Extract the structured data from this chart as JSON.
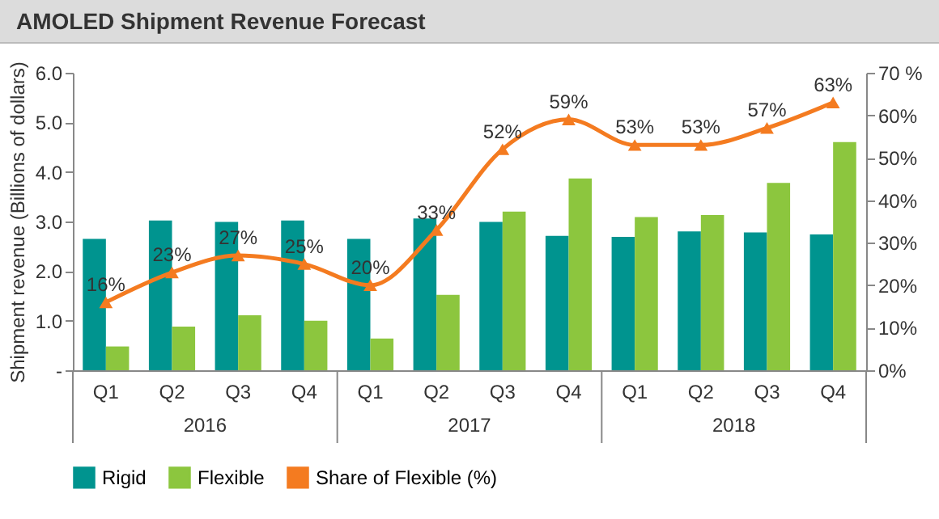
{
  "chart_data": {
    "type": "bar",
    "title": "AMOLED Shipment Revenue Forecast",
    "ylabel": "Shipment revenue (Billions of dollars)",
    "categories": [
      "Q1",
      "Q2",
      "Q3",
      "Q4",
      "Q1",
      "Q2",
      "Q3",
      "Q4",
      "Q1",
      "Q2",
      "Q3",
      "Q4"
    ],
    "annotations": [
      "2016",
      "2017",
      "2018"
    ],
    "series": [
      {
        "name": "Rigid",
        "color": "#00948f",
        "values": [
          2.65,
          3.02,
          2.99,
          3.02,
          2.65,
          3.06,
          2.99,
          2.71,
          2.69,
          2.8,
          2.78,
          2.74
        ]
      },
      {
        "name": "Flexible",
        "color": "#8cc63e",
        "values": [
          0.48,
          0.88,
          1.11,
          1.0,
          0.64,
          1.52,
          3.2,
          3.87,
          3.09,
          3.13,
          3.78,
          4.6
        ]
      },
      {
        "name": "Share of Flexible (%)",
        "type": "line",
        "axis": "y2",
        "color": "#f47b20",
        "values": [
          16,
          23,
          27,
          25,
          20,
          33,
          52,
          59,
          53,
          53,
          57,
          63
        ],
        "value_labels": [
          "16%",
          "23%",
          "27%",
          "25%",
          "20%",
          "33%",
          "52%",
          "59%",
          "53%",
          "53%",
          "57%",
          "63%"
        ]
      }
    ],
    "ylim": [
      0,
      6
    ],
    "yticks": [
      {
        "value": 0,
        "label": "-"
      },
      {
        "value": 1,
        "label": "1.0"
      },
      {
        "value": 2,
        "label": "2.0"
      },
      {
        "value": 3,
        "label": "3.0"
      },
      {
        "value": 4,
        "label": "4.0"
      },
      {
        "value": 5,
        "label": "5.0"
      },
      {
        "value": 6,
        "label": "6.0"
      }
    ],
    "y2lim": [
      0,
      70
    ],
    "y2ticks": [
      {
        "value": 0,
        "label": "0%"
      },
      {
        "value": 10,
        "label": "10%"
      },
      {
        "value": 20,
        "label": "20%"
      },
      {
        "value": 30,
        "label": "30%"
      },
      {
        "value": 40,
        "label": "40%"
      },
      {
        "value": 50,
        "label": "50%"
      },
      {
        "value": 60,
        "label": "60%"
      },
      {
        "value": 70,
        "label": "70 %"
      }
    ],
    "legend": "bottom",
    "marker": "triangle"
  }
}
